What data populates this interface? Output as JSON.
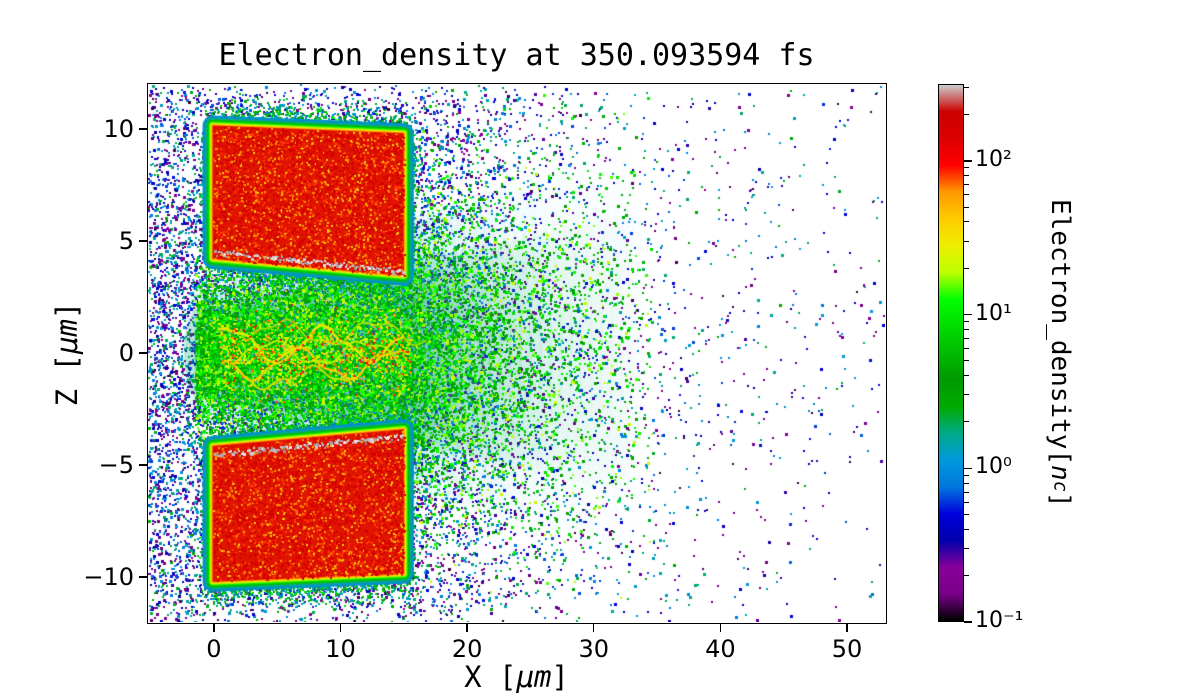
{
  "chart_data": {
    "type": "heatmap",
    "title": "Electron_density at 350.093594 fs",
    "xlabel": "X [μm]",
    "ylabel": "Z [μm]",
    "xlabel_parts": {
      "prefix": "X [",
      "math": "μm",
      "suffix": "]"
    },
    "ylabel_parts": {
      "prefix": "Z [",
      "math": "μm",
      "suffix": "]"
    },
    "xlim": [
      -5.2,
      53.0
    ],
    "ylim": [
      -12,
      12
    ],
    "xticks": [
      0,
      10,
      20,
      30,
      40,
      50
    ],
    "xtick_labels": [
      "0",
      "10",
      "20",
      "30",
      "40",
      "50"
    ],
    "yticks": [
      10,
      5,
      0,
      -5,
      -10
    ],
    "ytick_labels": [
      "10",
      "5",
      "0",
      "−5",
      "−10"
    ],
    "grid": false,
    "colorbar": {
      "label": "Electron_density[nc]",
      "label_parts": {
        "prefix": "Electron_density[",
        "var": "n",
        "sub": "c",
        "suffix": "]"
      },
      "scale": "log",
      "vmin": 0.1,
      "vmax": 316,
      "tick_values": [
        100,
        10,
        1,
        0.1
      ],
      "tick_labels": [
        "10²",
        "10¹",
        "10⁰",
        "10⁻¹"
      ],
      "colormap": "nipy_spectral",
      "stops": [
        [
          0,
          "#000000"
        ],
        [
          0.05,
          "#770088"
        ],
        [
          0.1,
          "#880099"
        ],
        [
          0.15,
          "#0000aa"
        ],
        [
          0.2,
          "#0000dd"
        ],
        [
          0.25,
          "#0077dd"
        ],
        [
          0.3,
          "#0099dd"
        ],
        [
          0.35,
          "#00aa88"
        ],
        [
          0.4,
          "#00aa00"
        ],
        [
          0.45,
          "#009900"
        ],
        [
          0.5,
          "#00bb00"
        ],
        [
          0.55,
          "#00dd00"
        ],
        [
          0.6,
          "#00ff00"
        ],
        [
          0.65,
          "#bbff00"
        ],
        [
          0.7,
          "#eeee00"
        ],
        [
          0.75,
          "#ffcc00"
        ],
        [
          0.8,
          "#ff9900"
        ],
        [
          0.85,
          "#ff0000"
        ],
        [
          0.9,
          "#dd0000"
        ],
        [
          0.95,
          "#cc0000"
        ],
        [
          1,
          "#cccccc"
        ]
      ]
    },
    "structures": {
      "upper_slab": {
        "polygon": [
          [
            -0.1,
            10.15
          ],
          [
            15,
            9.8
          ],
          [
            15,
            3.45
          ],
          [
            -0.1,
            4.2
          ]
        ],
        "density": "≈100–300 nc (red)"
      },
      "lower_slab": {
        "polygon": [
          [
            -0.1,
            -4.15
          ],
          [
            15,
            -3.4
          ],
          [
            15,
            -9.85
          ],
          [
            -0.1,
            -10.2
          ]
        ],
        "density": "≈100–300 nc (red)"
      },
      "interface_lines": {
        "upper": {
          "x": [
            0,
            14.9
          ],
          "z": [
            4.55,
            3.65
          ]
        },
        "lower": {
          "x": [
            0,
            14.9
          ],
          "z": [
            -4.5,
            -3.675
          ]
        }
      },
      "channel": {
        "x": [
          -1,
          33
        ],
        "z_halfwidth_at_x0": 2.1,
        "z_halfwidth_growth": 0.13,
        "density": "≈3–30 nc (green/yellow jet)"
      },
      "halo": {
        "description": "sparse 0.1–2 nc scattered electrons",
        "x_extent": [
          -5.2,
          53
        ]
      }
    }
  }
}
